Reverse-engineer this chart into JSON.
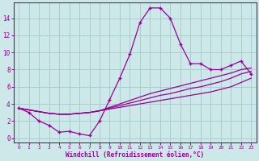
{
  "x": [
    0,
    1,
    2,
    3,
    4,
    5,
    6,
    7,
    8,
    9,
    10,
    11,
    12,
    13,
    14,
    15,
    16,
    17,
    18,
    19,
    20,
    21,
    22,
    23
  ],
  "windchill": [
    3.5,
    3.0,
    2.0,
    1.5,
    0.7,
    0.8,
    0.5,
    0.3,
    2.0,
    4.5,
    7.0,
    9.8,
    13.5,
    15.2,
    15.2,
    14.0,
    11.0,
    8.7,
    8.7,
    8.0,
    8.0,
    8.5,
    9.0,
    7.5
  ],
  "line2": [
    3.5,
    3.3,
    3.1,
    2.9,
    2.8,
    2.8,
    2.9,
    3.0,
    3.2,
    3.4,
    3.6,
    3.8,
    4.0,
    4.2,
    4.4,
    4.6,
    4.8,
    5.0,
    5.2,
    5.4,
    5.7,
    6.0,
    6.5,
    7.0
  ],
  "line3": [
    3.5,
    3.3,
    3.1,
    2.9,
    2.8,
    2.8,
    2.9,
    3.0,
    3.2,
    3.5,
    3.8,
    4.1,
    4.4,
    4.7,
    5.0,
    5.2,
    5.5,
    5.8,
    6.0,
    6.3,
    6.6,
    7.0,
    7.5,
    7.8
  ],
  "line4": [
    3.5,
    3.3,
    3.1,
    2.9,
    2.8,
    2.8,
    2.9,
    3.0,
    3.2,
    3.6,
    4.0,
    4.4,
    4.8,
    5.2,
    5.5,
    5.8,
    6.1,
    6.4,
    6.7,
    7.0,
    7.3,
    7.6,
    8.0,
    8.2
  ],
  "color": "#990099",
  "bg_color": "#cce8e8",
  "grid_color": "#aacccc",
  "xlabel": "Windchill (Refroidissement éolien,°C)",
  "xticks": [
    0,
    1,
    2,
    3,
    4,
    5,
    6,
    7,
    8,
    9,
    10,
    11,
    12,
    13,
    14,
    15,
    16,
    17,
    18,
    19,
    20,
    21,
    22,
    23
  ],
  "yticks": [
    0,
    2,
    4,
    6,
    8,
    10,
    12,
    14
  ],
  "ylim": [
    -0.5,
    15.8
  ],
  "xlim": [
    -0.5,
    23.5
  ]
}
